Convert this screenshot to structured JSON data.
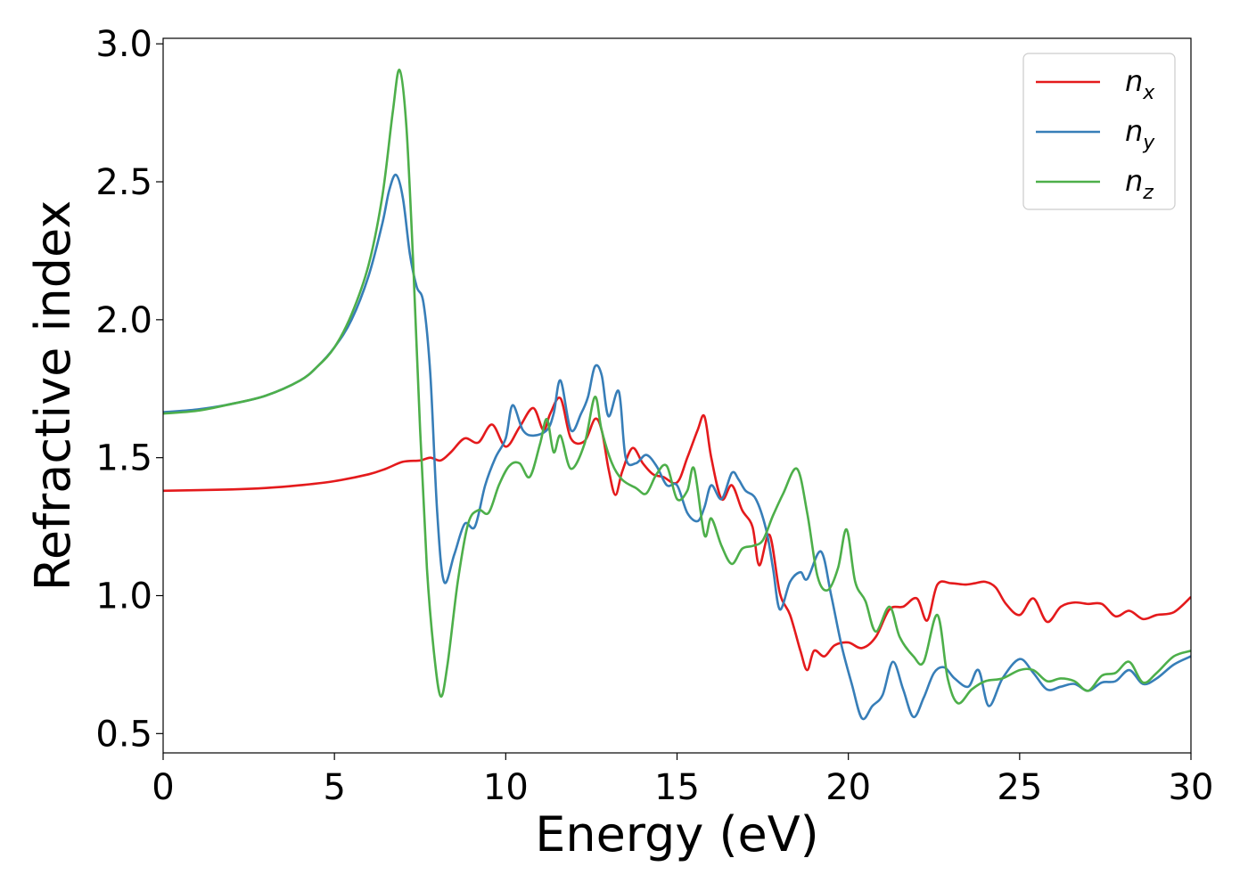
{
  "chart_data": {
    "type": "line",
    "xlabel": "Energy (eV)",
    "ylabel": "Refractive index",
    "xlim": [
      0,
      30
    ],
    "ylim": [
      0.43,
      3.02
    ],
    "xticks": [
      0,
      5,
      10,
      15,
      20,
      25,
      30
    ],
    "xtick_labels": [
      "0",
      "5",
      "10",
      "15",
      "20",
      "25",
      "30"
    ],
    "yticks": [
      0.5,
      1.0,
      1.5,
      2.0,
      2.5,
      3.0
    ],
    "ytick_labels": [
      "0.5",
      "1.0",
      "1.5",
      "2.0",
      "2.5",
      "3.0"
    ],
    "grid": false,
    "legend_position": "top-right",
    "series": [
      {
        "name": "n_x",
        "label_main": "n",
        "label_sub": "x",
        "color": "#e41a1c",
        "points": [
          [
            0,
            1.38
          ],
          [
            2,
            1.385
          ],
          [
            3,
            1.39
          ],
          [
            4,
            1.4
          ],
          [
            5,
            1.415
          ],
          [
            6,
            1.44
          ],
          [
            6.5,
            1.46
          ],
          [
            7,
            1.485
          ],
          [
            7.5,
            1.49
          ],
          [
            7.8,
            1.5
          ],
          [
            8.1,
            1.49
          ],
          [
            8.4,
            1.52
          ],
          [
            8.8,
            1.57
          ],
          [
            9.2,
            1.555
          ],
          [
            9.6,
            1.62
          ],
          [
            10,
            1.54
          ],
          [
            10.4,
            1.61
          ],
          [
            10.8,
            1.68
          ],
          [
            11.1,
            1.6
          ],
          [
            11.3,
            1.66
          ],
          [
            11.6,
            1.715
          ],
          [
            11.9,
            1.57
          ],
          [
            12.3,
            1.56
          ],
          [
            12.6,
            1.64
          ],
          [
            12.8,
            1.6
          ],
          [
            13,
            1.46
          ],
          [
            13.2,
            1.365
          ],
          [
            13.4,
            1.45
          ],
          [
            13.7,
            1.535
          ],
          [
            14,
            1.48
          ],
          [
            14.3,
            1.44
          ],
          [
            14.6,
            1.43
          ],
          [
            15,
            1.41
          ],
          [
            15.3,
            1.5
          ],
          [
            15.6,
            1.6
          ],
          [
            15.8,
            1.65
          ],
          [
            16,
            1.5
          ],
          [
            16.3,
            1.35
          ],
          [
            16.6,
            1.4
          ],
          [
            16.9,
            1.31
          ],
          [
            17.2,
            1.25
          ],
          [
            17.4,
            1.11
          ],
          [
            17.7,
            1.22
          ],
          [
            18,
            1.01
          ],
          [
            18.3,
            0.93
          ],
          [
            18.6,
            0.8
          ],
          [
            18.8,
            0.73
          ],
          [
            19,
            0.8
          ],
          [
            19.3,
            0.78
          ],
          [
            19.6,
            0.82
          ],
          [
            20,
            0.83
          ],
          [
            20.4,
            0.81
          ],
          [
            20.8,
            0.85
          ],
          [
            21.2,
            0.95
          ],
          [
            21.6,
            0.96
          ],
          [
            22,
            0.99
          ],
          [
            22.3,
            0.91
          ],
          [
            22.6,
            1.04
          ],
          [
            23,
            1.045
          ],
          [
            23.4,
            1.04
          ],
          [
            23.7,
            1.045
          ],
          [
            24,
            1.05
          ],
          [
            24.3,
            1.03
          ],
          [
            24.6,
            0.97
          ],
          [
            25,
            0.93
          ],
          [
            25.4,
            0.99
          ],
          [
            25.8,
            0.905
          ],
          [
            26.2,
            0.96
          ],
          [
            26.6,
            0.975
          ],
          [
            27,
            0.97
          ],
          [
            27.4,
            0.97
          ],
          [
            27.8,
            0.925
          ],
          [
            28.2,
            0.945
          ],
          [
            28.6,
            0.915
          ],
          [
            29,
            0.93
          ],
          [
            29.5,
            0.94
          ],
          [
            30,
            0.995
          ]
        ]
      },
      {
        "name": "n_y",
        "label_main": "n",
        "label_sub": "y",
        "color": "#377eb8",
        "points": [
          [
            0,
            1.665
          ],
          [
            1,
            1.675
          ],
          [
            2,
            1.695
          ],
          [
            3,
            1.725
          ],
          [
            4,
            1.78
          ],
          [
            4.5,
            1.83
          ],
          [
            5,
            1.9
          ],
          [
            5.5,
            2.0
          ],
          [
            6,
            2.16
          ],
          [
            6.4,
            2.35
          ],
          [
            6.6,
            2.47
          ],
          [
            6.8,
            2.525
          ],
          [
            7,
            2.44
          ],
          [
            7.2,
            2.24
          ],
          [
            7.4,
            2.12
          ],
          [
            7.6,
            2.06
          ],
          [
            7.8,
            1.8
          ],
          [
            8,
            1.3
          ],
          [
            8.2,
            1.05
          ],
          [
            8.5,
            1.15
          ],
          [
            8.8,
            1.26
          ],
          [
            9.1,
            1.25
          ],
          [
            9.4,
            1.4
          ],
          [
            9.7,
            1.5
          ],
          [
            10,
            1.57
          ],
          [
            10.2,
            1.69
          ],
          [
            10.5,
            1.6
          ],
          [
            10.8,
            1.58
          ],
          [
            11.2,
            1.6
          ],
          [
            11.4,
            1.66
          ],
          [
            11.6,
            1.78
          ],
          [
            11.9,
            1.6
          ],
          [
            12.2,
            1.66
          ],
          [
            12.4,
            1.72
          ],
          [
            12.6,
            1.83
          ],
          [
            12.8,
            1.8
          ],
          [
            13,
            1.65
          ],
          [
            13.3,
            1.74
          ],
          [
            13.5,
            1.5
          ],
          [
            13.8,
            1.48
          ],
          [
            14.1,
            1.51
          ],
          [
            14.4,
            1.47
          ],
          [
            14.7,
            1.4
          ],
          [
            15,
            1.4
          ],
          [
            15.3,
            1.3
          ],
          [
            15.6,
            1.27
          ],
          [
            15.8,
            1.32
          ],
          [
            16,
            1.4
          ],
          [
            16.3,
            1.35
          ],
          [
            16.6,
            1.445
          ],
          [
            16.8,
            1.42
          ],
          [
            17,
            1.38
          ],
          [
            17.3,
            1.35
          ],
          [
            17.6,
            1.24
          ],
          [
            17.8,
            1.1
          ],
          [
            18,
            0.95
          ],
          [
            18.3,
            1.05
          ],
          [
            18.6,
            1.085
          ],
          [
            18.8,
            1.06
          ],
          [
            19.2,
            1.16
          ],
          [
            19.5,
            1.0
          ],
          [
            19.8,
            0.82
          ],
          [
            20.1,
            0.68
          ],
          [
            20.4,
            0.555
          ],
          [
            20.7,
            0.6
          ],
          [
            21,
            0.64
          ],
          [
            21.3,
            0.76
          ],
          [
            21.6,
            0.66
          ],
          [
            21.9,
            0.56
          ],
          [
            22.2,
            0.63
          ],
          [
            22.5,
            0.72
          ],
          [
            22.8,
            0.74
          ],
          [
            23.1,
            0.7
          ],
          [
            23.5,
            0.67
          ],
          [
            23.8,
            0.73
          ],
          [
            24.1,
            0.6
          ],
          [
            24.5,
            0.7
          ],
          [
            25,
            0.77
          ],
          [
            25.4,
            0.72
          ],
          [
            25.8,
            0.66
          ],
          [
            26.2,
            0.67
          ],
          [
            26.6,
            0.68
          ],
          [
            27,
            0.655
          ],
          [
            27.4,
            0.685
          ],
          [
            27.8,
            0.69
          ],
          [
            28.2,
            0.73
          ],
          [
            28.6,
            0.68
          ],
          [
            29,
            0.7
          ],
          [
            29.5,
            0.75
          ],
          [
            30,
            0.78
          ]
        ]
      },
      {
        "name": "n_z",
        "label_main": "n",
        "label_sub": "z",
        "color": "#4daf4a",
        "points": [
          [
            0,
            1.66
          ],
          [
            1,
            1.67
          ],
          [
            2,
            1.695
          ],
          [
            3,
            1.725
          ],
          [
            4,
            1.78
          ],
          [
            4.5,
            1.83
          ],
          [
            5,
            1.9
          ],
          [
            5.5,
            2.02
          ],
          [
            6,
            2.2
          ],
          [
            6.4,
            2.45
          ],
          [
            6.7,
            2.75
          ],
          [
            6.9,
            2.905
          ],
          [
            7.1,
            2.7
          ],
          [
            7.3,
            2.2
          ],
          [
            7.5,
            1.6
          ],
          [
            7.7,
            1.1
          ],
          [
            7.9,
            0.8
          ],
          [
            8.1,
            0.635
          ],
          [
            8.3,
            0.75
          ],
          [
            8.6,
            1.05
          ],
          [
            8.9,
            1.26
          ],
          [
            9.2,
            1.31
          ],
          [
            9.5,
            1.3
          ],
          [
            9.8,
            1.4
          ],
          [
            10.1,
            1.47
          ],
          [
            10.4,
            1.48
          ],
          [
            10.7,
            1.43
          ],
          [
            11,
            1.55
          ],
          [
            11.2,
            1.64
          ],
          [
            11.4,
            1.52
          ],
          [
            11.6,
            1.58
          ],
          [
            11.9,
            1.46
          ],
          [
            12.3,
            1.55
          ],
          [
            12.6,
            1.72
          ],
          [
            12.8,
            1.6
          ],
          [
            13.1,
            1.48
          ],
          [
            13.4,
            1.42
          ],
          [
            13.8,
            1.39
          ],
          [
            14.1,
            1.37
          ],
          [
            14.4,
            1.44
          ],
          [
            14.7,
            1.47
          ],
          [
            15,
            1.35
          ],
          [
            15.3,
            1.38
          ],
          [
            15.5,
            1.46
          ],
          [
            15.8,
            1.22
          ],
          [
            16,
            1.28
          ],
          [
            16.3,
            1.18
          ],
          [
            16.6,
            1.115
          ],
          [
            16.9,
            1.17
          ],
          [
            17.2,
            1.18
          ],
          [
            17.5,
            1.2
          ],
          [
            17.8,
            1.29
          ],
          [
            18.1,
            1.37
          ],
          [
            18.5,
            1.46
          ],
          [
            18.8,
            1.3
          ],
          [
            19.1,
            1.07
          ],
          [
            19.4,
            1.02
          ],
          [
            19.7,
            1.1
          ],
          [
            19.95,
            1.24
          ],
          [
            20.2,
            1.05
          ],
          [
            20.5,
            0.98
          ],
          [
            20.8,
            0.87
          ],
          [
            21.2,
            0.96
          ],
          [
            21.5,
            0.85
          ],
          [
            21.9,
            0.78
          ],
          [
            22.2,
            0.76
          ],
          [
            22.6,
            0.93
          ],
          [
            22.9,
            0.7
          ],
          [
            23.2,
            0.61
          ],
          [
            23.6,
            0.66
          ],
          [
            24,
            0.69
          ],
          [
            24.5,
            0.7
          ],
          [
            25,
            0.73
          ],
          [
            25.4,
            0.73
          ],
          [
            25.8,
            0.69
          ],
          [
            26.2,
            0.7
          ],
          [
            26.6,
            0.69
          ],
          [
            27,
            0.655
          ],
          [
            27.4,
            0.71
          ],
          [
            27.8,
            0.72
          ],
          [
            28.2,
            0.76
          ],
          [
            28.6,
            0.685
          ],
          [
            29,
            0.72
          ],
          [
            29.5,
            0.78
          ],
          [
            30,
            0.8
          ]
        ]
      }
    ]
  }
}
